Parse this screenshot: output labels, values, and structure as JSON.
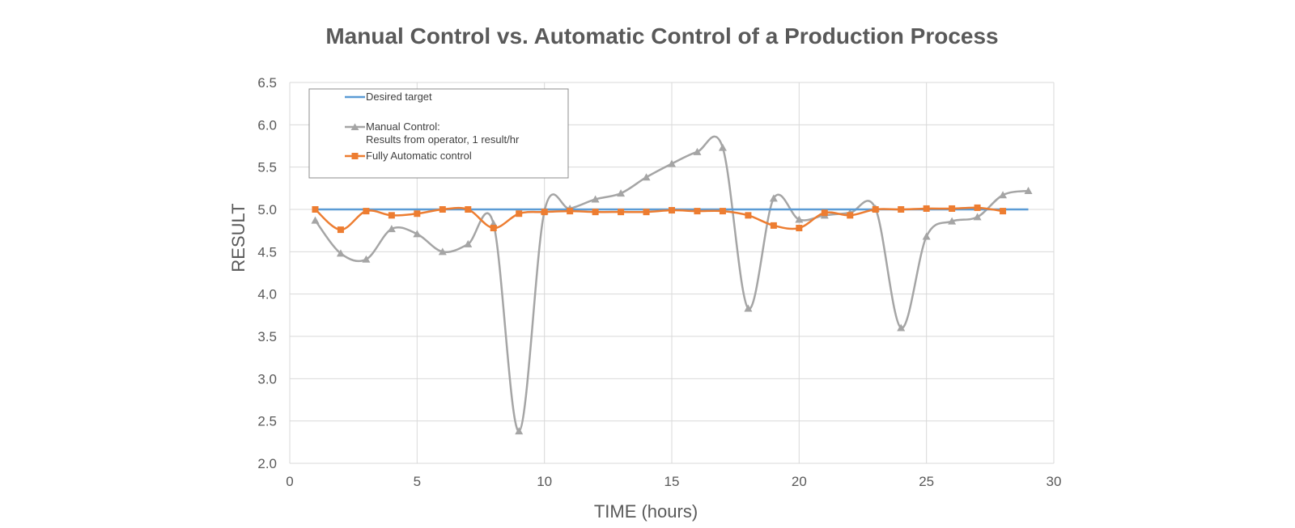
{
  "chart_data": {
    "type": "line",
    "title": "Manual Control vs. Automatic Control of a Production Process",
    "xlabel": "TIME (hours)",
    "ylabel": "RESULT",
    "xlim": [
      0,
      30
    ],
    "ylim": [
      2.0,
      6.5
    ],
    "x_ticks": [
      "0",
      "5",
      "10",
      "15",
      "20",
      "25",
      "30"
    ],
    "y_ticks": [
      "2.0",
      "2.5",
      "3.0",
      "3.5",
      "4.0",
      "4.5",
      "5.0",
      "5.5",
      "6.0",
      "6.5"
    ],
    "grid": true,
    "legend_position": "top-left",
    "series": [
      {
        "name": "Desired target",
        "color": "#5b9bd5",
        "marker": "none",
        "smooth": false,
        "x": [
          1,
          29
        ],
        "y": [
          5.0,
          5.0
        ]
      },
      {
        "name": "Manual Control:",
        "name_line2": "Results from operator, 1 result/hr",
        "color": "#a5a5a5",
        "marker": "triangle",
        "smooth": true,
        "x": [
          1,
          2,
          3,
          4,
          5,
          6,
          7,
          8,
          9,
          10,
          11,
          12,
          13,
          14,
          15,
          16,
          17,
          18,
          19,
          20,
          21,
          22,
          23,
          24,
          25,
          26,
          27,
          28,
          29
        ],
        "y": [
          4.87,
          4.48,
          4.41,
          4.77,
          4.71,
          4.5,
          4.59,
          4.83,
          2.38,
          4.98,
          5.01,
          5.12,
          5.19,
          5.38,
          5.54,
          5.68,
          5.73,
          3.83,
          5.13,
          4.88,
          4.93,
          4.96,
          5.01,
          3.6,
          4.68,
          4.86,
          4.91,
          5.17,
          5.22
        ]
      },
      {
        "name": "Fully Automatic control",
        "color": "#ed7d31",
        "marker": "square",
        "smooth": true,
        "x": [
          1,
          2,
          3,
          4,
          5,
          6,
          7,
          8,
          9,
          10,
          11,
          12,
          13,
          14,
          15,
          16,
          17,
          18,
          19,
          20,
          21,
          22,
          23,
          24,
          25,
          26,
          27,
          28
        ],
        "y": [
          5.0,
          4.76,
          4.98,
          4.93,
          4.95,
          5.0,
          5.0,
          4.78,
          4.95,
          4.97,
          4.98,
          4.97,
          4.97,
          4.97,
          4.99,
          4.98,
          4.98,
          4.93,
          4.81,
          4.78,
          4.96,
          4.93,
          5.0,
          5.0,
          5.01,
          5.01,
          5.02,
          4.98
        ]
      }
    ]
  }
}
